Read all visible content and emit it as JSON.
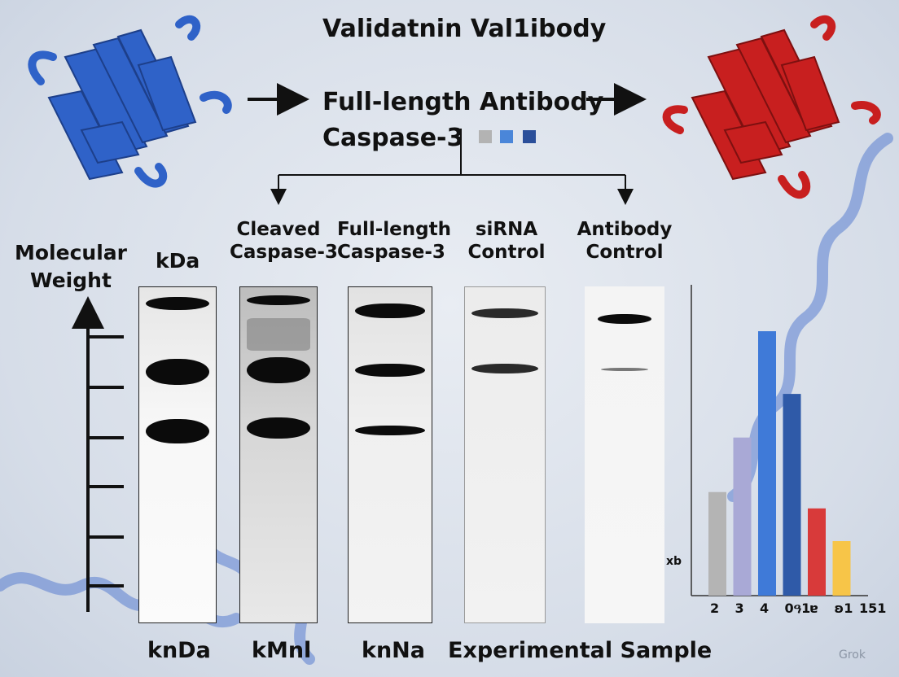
{
  "title": "Validatnin Val1ibody",
  "flow": {
    "line1": "Full-length Antibody",
    "line2": "Caspase-3"
  },
  "legend_colors": [
    "#b3b3b3",
    "#4a86d9",
    "#2b4f9a"
  ],
  "proteins": {
    "left_color": "#2f62c8",
    "right_color": "#c81f1f",
    "left_icon": "protein-ribbon-icon",
    "right_icon": "protein-ribbon-icon"
  },
  "mw_axis": {
    "label_line1": "Molecular",
    "label_line2": "Weight",
    "unit": "kDa"
  },
  "lanes": [
    {
      "header1": "",
      "header2": "",
      "bottom": "knDa"
    },
    {
      "header1": "Cleaved",
      "header2": "Caspase-3",
      "bottom": "kMnl"
    },
    {
      "header1": "Full-length",
      "header2": "Caspase-3",
      "bottom": "knNa"
    },
    {
      "header1": "siRNA",
      "header2": "Control",
      "bottom": ""
    },
    {
      "header1": "Antibody",
      "header2": "Control",
      "bottom": ""
    }
  ],
  "experimental_label": "Experimental Sample",
  "marker_label": "xb",
  "chart_data": {
    "type": "bar",
    "categories": [
      "2",
      "3",
      "4",
      "0ዓ1",
      "ɐ",
      "ʚ1",
      "151"
    ],
    "values": [
      0.38,
      0.58,
      0.97,
      0.74,
      0.32,
      0.2,
      0
    ],
    "colors": [
      "#b4b4b4",
      "#a9a9d6",
      "#3f7ad8",
      "#2f5aa8",
      "#d83a3a",
      "#f7c548",
      "#ffffff"
    ],
    "ylim": [
      0,
      1
    ],
    "title": "",
    "xlabel": "",
    "ylabel": ""
  },
  "watermark": "Grok"
}
